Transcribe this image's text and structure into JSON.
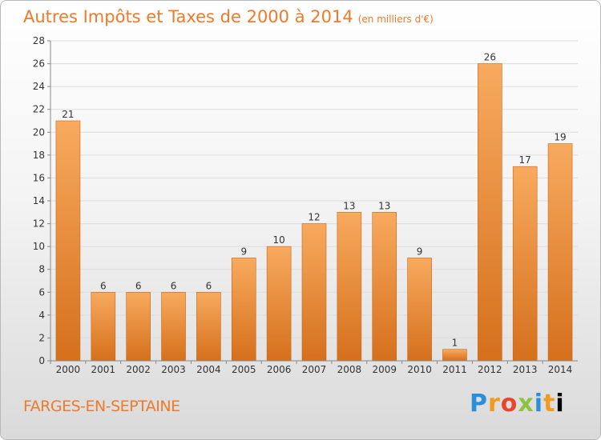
{
  "header": {
    "title": "Autres Impôts et Taxes de 2000 à 2014",
    "unit": "(en milliers d'€)"
  },
  "footer": {
    "commune": "FARGES-EN-SEPTAINE",
    "brand": [
      "P",
      "r",
      "o",
      "x",
      "i",
      "t",
      "i"
    ]
  },
  "colors": {
    "bar_light": "#f7a65a",
    "bar_dark": "#d8721e",
    "title": "#ee7a2a"
  },
  "chart_data": {
    "type": "bar",
    "title": "Autres Impôts et Taxes de 2000 à 2014",
    "subtitle": "(en milliers d'€)",
    "categories": [
      "2000",
      "2001",
      "2002",
      "2003",
      "2004",
      "2005",
      "2006",
      "2007",
      "2008",
      "2009",
      "2010",
      "2011",
      "2012",
      "2013",
      "2014"
    ],
    "values": [
      21,
      6,
      6,
      6,
      6,
      9,
      10,
      12,
      13,
      13,
      9,
      1,
      26,
      17,
      19
    ],
    "ylim": [
      0,
      28
    ],
    "yticks": [
      0,
      2,
      4,
      6,
      8,
      10,
      12,
      14,
      16,
      18,
      20,
      22,
      24,
      26,
      28
    ],
    "grid": true,
    "legend": "none"
  }
}
